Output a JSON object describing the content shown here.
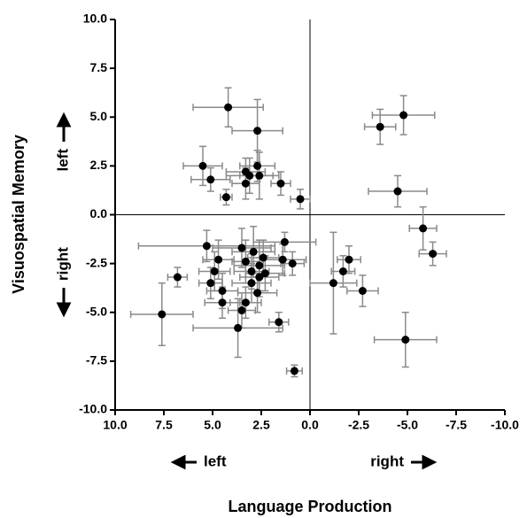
{
  "chart_data": {
    "type": "scatter",
    "x_label": "Language Production",
    "y_label": "Visuospatial Memory",
    "x_direction_labels": [
      "left",
      "right"
    ],
    "y_direction_labels": [
      "left",
      "right"
    ],
    "xlim": [
      10,
      -10
    ],
    "ylim": [
      -10,
      10
    ],
    "xticks": [
      {
        "value": 10,
        "label": "10.0"
      },
      {
        "value": 7.5,
        "label": "7.5"
      },
      {
        "value": 5,
        "label": "5.0"
      },
      {
        "value": 2.5,
        "label": "2.5"
      },
      {
        "value": 0,
        "label": "0.0"
      },
      {
        "value": -2.5,
        "label": "-2.5"
      },
      {
        "value": -5,
        "label": "-5.0"
      },
      {
        "value": -7.5,
        "label": "-7.5"
      },
      {
        "value": -10,
        "label": "-10.0"
      }
    ],
    "yticks": [
      {
        "value": -10,
        "label": "-10.0"
      },
      {
        "value": -7.5,
        "label": "-7.5"
      },
      {
        "value": -5,
        "label": "-5.0"
      },
      {
        "value": -2.5,
        "label": "-2.5"
      },
      {
        "value": 0,
        "label": "0.0"
      },
      {
        "value": 2.5,
        "label": "2.5"
      },
      {
        "value": 5,
        "label": "5.0"
      },
      {
        "value": 7.5,
        "label": "7.5"
      },
      {
        "value": 10,
        "label": "10.0"
      }
    ],
    "color": "#000000",
    "error_color": "#8a8a8a",
    "x": [
      4.2,
      2.7,
      -4.8,
      -3.6,
      5.5,
      5.1,
      4.3,
      3.3,
      3.1,
      3.3,
      2.7,
      2.6,
      1.5,
      0.5,
      -4.5,
      -5.8,
      -6.3,
      -2.0,
      -1.7,
      -1.2,
      -2.7,
      -4.9,
      0.8,
      7.6,
      6.8,
      5.3,
      5.1,
      4.9,
      4.7,
      4.5,
      4.5,
      3.7,
      3.5,
      3.5,
      3.3,
      3.3,
      3.0,
      2.9,
      2.7,
      2.6,
      2.4,
      3.0,
      2.3,
      1.3,
      1.4,
      0.9,
      1.6,
      2.6
    ],
    "xerr": [
      1.8,
      1.3,
      1.6,
      0.8,
      1.0,
      1.0,
      0.3,
      1.0,
      1.2,
      0.7,
      0.9,
      1.0,
      0.5,
      0.5,
      1.5,
      0.7,
      0.7,
      0.6,
      0.6,
      1.2,
      0.8,
      1.6,
      0.4,
      1.6,
      0.5,
      3.5,
      0.6,
      0.8,
      0.8,
      0.8,
      0.9,
      2.3,
      1.5,
      0.7,
      0.7,
      0.8,
      1.0,
      1.1,
      1.0,
      1.3,
      0.8,
      0.9,
      1.0,
      1.6,
      1.2,
      0.6,
      0.5,
      1.0
    ],
    "values": [
      5.5,
      4.3,
      5.1,
      4.5,
      2.5,
      1.8,
      0.9,
      2.2,
      2.0,
      1.6,
      2.5,
      2.0,
      1.6,
      0.8,
      1.2,
      -0.7,
      -2.0,
      -2.3,
      -2.9,
      -3.5,
      -3.9,
      -6.4,
      -8.0,
      -5.1,
      -3.2,
      -1.6,
      -3.5,
      -2.9,
      -2.3,
      -3.9,
      -4.5,
      -5.8,
      -1.7,
      -4.9,
      -2.4,
      -4.5,
      -3.5,
      -1.9,
      -4.0,
      -2.6,
      -2.2,
      -2.9,
      -3.0,
      -1.4,
      -2.3,
      -2.5,
      -5.5,
      -3.2
    ],
    "yerr": [
      1.0,
      1.6,
      1.0,
      0.9,
      1.0,
      0.6,
      0.4,
      0.7,
      0.9,
      0.8,
      0.8,
      1.2,
      0.6,
      0.5,
      0.8,
      1.1,
      0.6,
      0.7,
      0.8,
      2.6,
      0.8,
      1.4,
      0.3,
      1.6,
      0.5,
      0.8,
      0.8,
      1.0,
      1.0,
      0.9,
      0.8,
      1.5,
      1.0,
      0.9,
      1.1,
      0.8,
      1.0,
      1.3,
      1.0,
      1.3,
      0.9,
      0.9,
      0.9,
      0.5,
      0.8,
      0.6,
      0.5,
      1.0
    ]
  }
}
